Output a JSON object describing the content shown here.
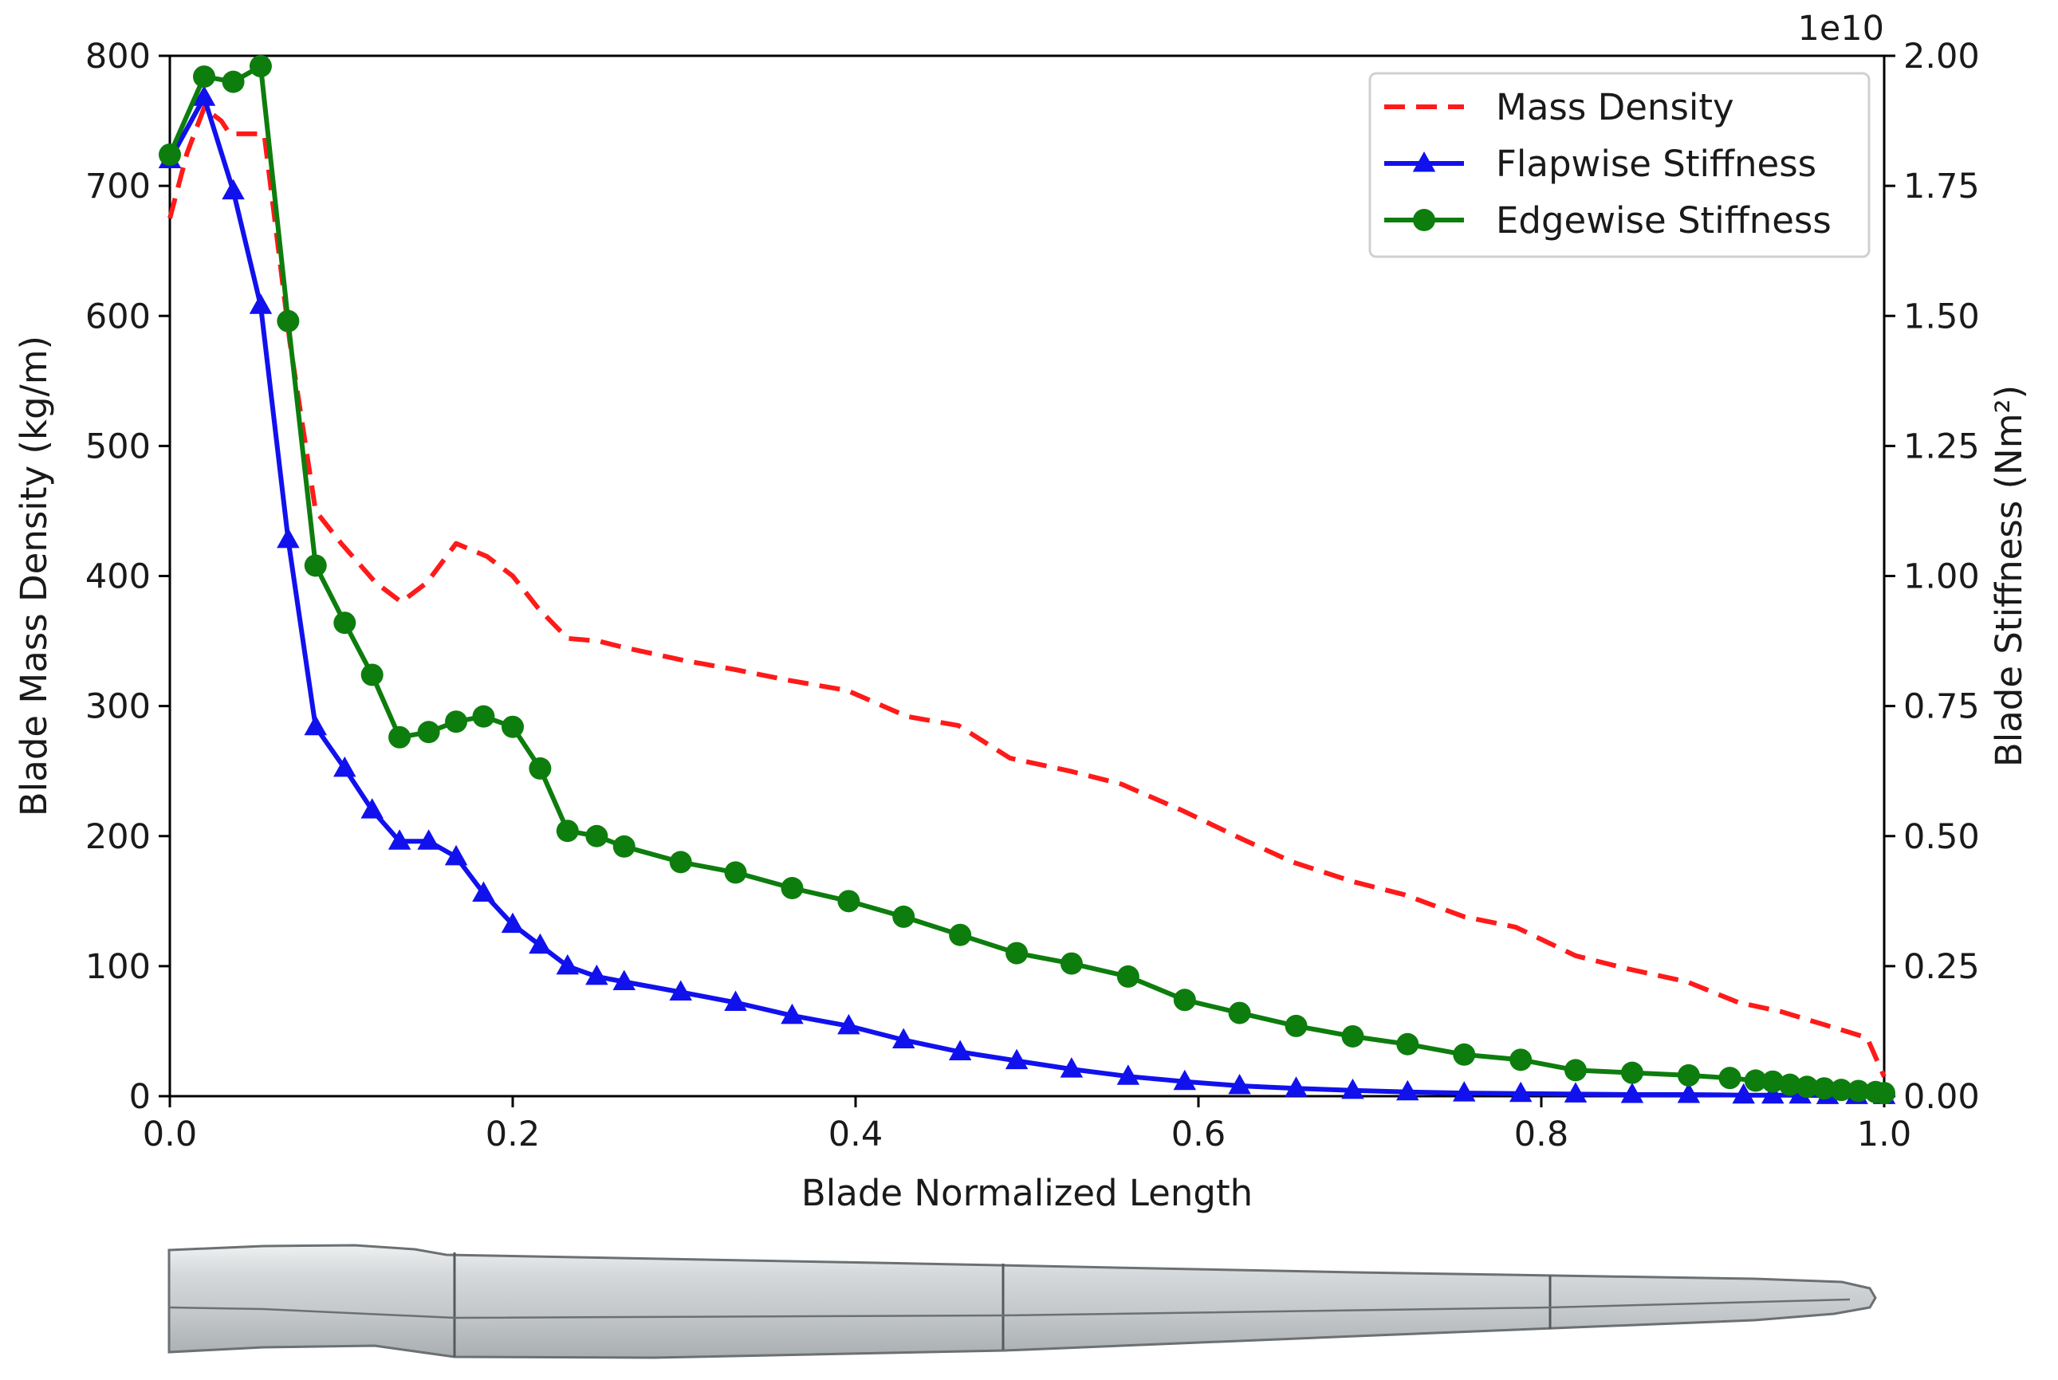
{
  "chart_data": {
    "type": "line",
    "xlabel": "Blade Normalized Length",
    "ylabel_left": "Blade Mass Density (kg/m)",
    "ylabel_right": "Blade Stiffness (Nm²)",
    "right_axis_multiplier": "1e10",
    "xlim": [
      0.0,
      1.0
    ],
    "ylim_left": [
      0,
      800
    ],
    "ylim_right": [
      0.0,
      2.0
    ],
    "x_ticks": [
      "0.0",
      "0.2",
      "0.4",
      "0.6",
      "0.8",
      "1.0"
    ],
    "y_ticks_left": [
      "0",
      "100",
      "200",
      "300",
      "400",
      "500",
      "600",
      "700",
      "800"
    ],
    "y_ticks_right": [
      "0.00",
      "0.25",
      "0.50",
      "0.75",
      "1.00",
      "1.25",
      "1.50",
      "1.75",
      "2.00"
    ],
    "grid": false,
    "legend_position": "top-right",
    "series": [
      {
        "name": "Mass Density",
        "axis": "left",
        "color": "#ff1a1a",
        "style": "dashed",
        "marker": "none",
        "x": [
          0.0,
          0.01,
          0.02,
          0.03,
          0.035,
          0.05,
          0.055,
          0.07,
          0.085,
          0.1,
          0.12,
          0.135,
          0.15,
          0.167,
          0.185,
          0.2,
          0.215,
          0.232,
          0.25,
          0.265,
          0.3,
          0.33,
          0.36,
          0.395,
          0.43,
          0.46,
          0.49,
          0.525,
          0.555,
          0.59,
          0.625,
          0.655,
          0.69,
          0.72,
          0.755,
          0.785,
          0.82,
          0.85,
          0.885,
          0.915,
          0.94,
          0.965,
          0.99,
          1.0
        ],
        "y": [
          675,
          725,
          760,
          750,
          740,
          740,
          740,
          580,
          450,
          425,
          395,
          380,
          395,
          425,
          415,
          400,
          375,
          352,
          350,
          345,
          335,
          328,
          320,
          312,
          292,
          285,
          260,
          250,
          240,
          220,
          198,
          180,
          165,
          155,
          138,
          130,
          108,
          98,
          88,
          72,
          65,
          55,
          45,
          15
        ]
      },
      {
        "name": "Flapwise Stiffness",
        "axis": "right",
        "color": "#1111ee",
        "style": "solid",
        "marker": "triangle",
        "x": [
          0.0,
          0.02,
          0.037,
          0.053,
          0.069,
          0.085,
          0.102,
          0.118,
          0.134,
          0.151,
          0.167,
          0.183,
          0.2,
          0.216,
          0.232,
          0.249,
          0.265,
          0.298,
          0.33,
          0.363,
          0.396,
          0.428,
          0.461,
          0.494,
          0.526,
          0.559,
          0.592,
          0.624,
          0.657,
          0.69,
          0.722,
          0.755,
          0.788,
          0.82,
          0.853,
          0.886,
          0.918,
          0.935,
          0.951,
          0.967,
          0.984,
          1.0
        ],
        "y": [
          1.8,
          1.92,
          1.74,
          1.52,
          1.07,
          0.71,
          0.63,
          0.55,
          0.49,
          0.49,
          0.46,
          0.39,
          0.33,
          0.29,
          0.25,
          0.23,
          0.22,
          0.2,
          0.18,
          0.155,
          0.135,
          0.108,
          0.085,
          0.068,
          0.052,
          0.038,
          0.028,
          0.02,
          0.015,
          0.011,
          0.008,
          0.006,
          0.005,
          0.004,
          0.003,
          0.003,
          0.002,
          0.002,
          0.002,
          0.001,
          0.001,
          0.001
        ]
      },
      {
        "name": "Edgewise Stiffness",
        "axis": "right",
        "color": "#0d7d0d",
        "style": "solid",
        "marker": "circle",
        "x": [
          0.0,
          0.02,
          0.037,
          0.053,
          0.069,
          0.085,
          0.102,
          0.118,
          0.134,
          0.151,
          0.167,
          0.183,
          0.2,
          0.216,
          0.232,
          0.249,
          0.265,
          0.298,
          0.33,
          0.363,
          0.396,
          0.428,
          0.461,
          0.494,
          0.526,
          0.559,
          0.592,
          0.624,
          0.657,
          0.69,
          0.722,
          0.755,
          0.788,
          0.82,
          0.853,
          0.886,
          0.91,
          0.925,
          0.935,
          0.945,
          0.955,
          0.965,
          0.975,
          0.985,
          0.995,
          1.0
        ],
        "y": [
          1.81,
          1.96,
          1.95,
          1.98,
          1.49,
          1.02,
          0.91,
          0.81,
          0.69,
          0.7,
          0.72,
          0.73,
          0.71,
          0.63,
          0.51,
          0.5,
          0.48,
          0.45,
          0.43,
          0.4,
          0.375,
          0.345,
          0.31,
          0.275,
          0.255,
          0.23,
          0.185,
          0.16,
          0.135,
          0.115,
          0.1,
          0.08,
          0.07,
          0.05,
          0.045,
          0.04,
          0.035,
          0.03,
          0.028,
          0.022,
          0.018,
          0.015,
          0.012,
          0.01,
          0.008,
          0.006
        ]
      }
    ]
  },
  "blade_illustration": {
    "icon": "wind-turbine-blade-icon",
    "fill_color": "#c8cbcd"
  }
}
